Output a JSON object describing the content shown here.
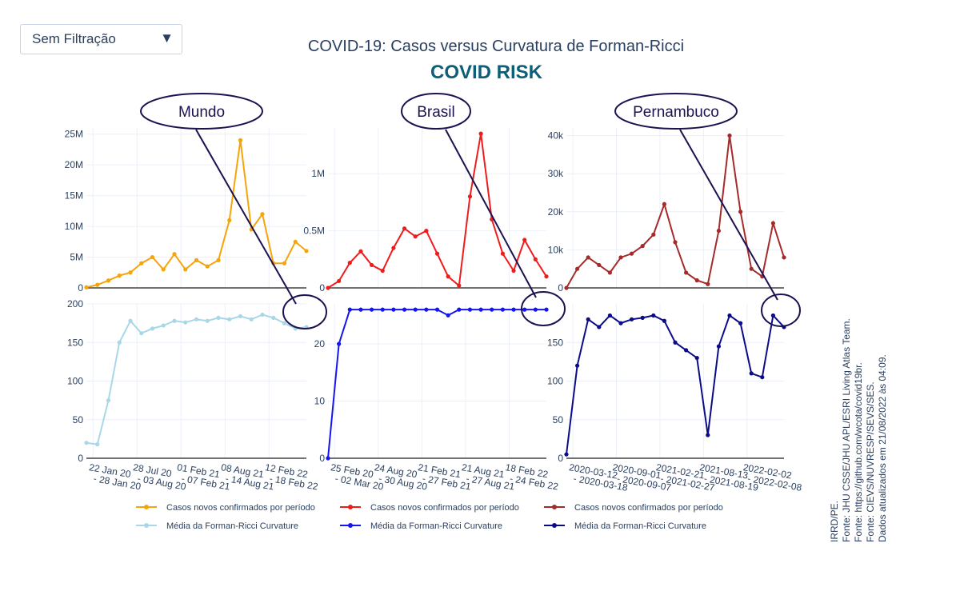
{
  "filter": {
    "selected": "Sem Filtração",
    "arrow_icon": "triangle-down-icon"
  },
  "title": "COVID-19: Casos versus Curvatura de Forman-Ricci",
  "subtitle": "COVID RISK",
  "colors": {
    "mundo_cases": "#f5a40a",
    "mundo_curv": "#a8d8e8",
    "brasil_cases": "#ee1c1c",
    "brasil_curv": "#1515ee",
    "pe_cases": "#a52a2a",
    "pe_curv": "#0b0b8a",
    "annotation": "#1c1250",
    "subtitle": "#0d5e78"
  },
  "annotations": [
    "Mundo",
    "Brasil",
    "Pernambuco"
  ],
  "x_ticks": {
    "mundo_row1": [
      "22 Jan 20",
      "28 Jul 20",
      "01 Feb 21",
      "08 Aug 21",
      "12 Feb 22"
    ],
    "mundo_row2": [
      "- 28 Jan 20",
      "- 03 Aug 20",
      "- 07 Feb 21",
      "- 14 Aug 21",
      "- 18 Feb 22"
    ],
    "brasil_row1": [
      "25 Feb 20",
      "24 Aug 20",
      "21 Feb 21",
      "21 Aug 21",
      "18 Feb 22"
    ],
    "brasil_row2": [
      "- 02 Mar 20",
      "- 30 Aug 20",
      "- 27 Feb 21",
      "- 27 Aug 21",
      "- 24 Feb 22"
    ],
    "pe_row1": [
      "2020-03-12",
      "2020-09-01",
      "2021-02-21",
      "2021-08-13",
      "2022-02-02"
    ],
    "pe_row2": [
      "- 2020-03-18",
      "- 2020-09-07",
      "- 2021-02-27",
      "- 2021-08-19",
      "- 2022-02-08"
    ]
  },
  "legend": [
    {
      "label": "Casos novos confirmados por período",
      "color": "#f5a40a"
    },
    {
      "label": "Casos novos confirmados por período",
      "color": "#ee1c1c"
    },
    {
      "label": "Casos novos confirmados por período",
      "color": "#a52a2a"
    },
    {
      "label": "Média da Forman-Ricci Curvature",
      "color": "#a8d8e8"
    },
    {
      "label": "Média da Forman-Ricci Curvature",
      "color": "#1515ee"
    },
    {
      "label": "Média da Forman-Ricci Curvature",
      "color": "#0b0b8a"
    }
  ],
  "sources": [
    "IRRD/PE.",
    "Fonte: JHU CSSE/JHU APL/ESRI Living Atlas Team.",
    "Fonte: https://github.com/wcota/covid19br.",
    "Fonte: CIEVS/NUVRESP/SEVS/SES.",
    "Dados atualizados em 21/08/2022 às 04:09."
  ],
  "chart_data": [
    {
      "panel": "Mundo - Casos",
      "type": "line",
      "y_ticks": [
        "0",
        "5M",
        "10M",
        "15M",
        "20M",
        "25M"
      ],
      "ylim": [
        0,
        26000000
      ],
      "series": [
        {
          "name": "Casos novos confirmados por período",
          "values": [
            100000,
            500000,
            1200000,
            2000000,
            2500000,
            4000000,
            5000000,
            3000000,
            5500000,
            3000000,
            4500000,
            3500000,
            4500000,
            11000000,
            24000000,
            9500000,
            12000000,
            4000000,
            4000000,
            7500000,
            6000000
          ]
        }
      ]
    },
    {
      "panel": "Mundo - Curvatura",
      "type": "line",
      "y_ticks": [
        "0",
        "50",
        "100",
        "150",
        "200"
      ],
      "ylim": [
        0,
        200
      ],
      "series": [
        {
          "name": "Média da Forman-Ricci Curvature",
          "values": [
            20,
            18,
            75,
            150,
            178,
            162,
            168,
            172,
            178,
            176,
            180,
            178,
            182,
            180,
            184,
            180,
            186,
            182,
            175,
            168,
            170
          ]
        }
      ]
    },
    {
      "panel": "Brasil - Casos",
      "type": "line",
      "y_ticks": [
        "0",
        "0.5M",
        "1M"
      ],
      "ylim": [
        0,
        1400000
      ],
      "series": [
        {
          "name": "Casos novos confirmados por período",
          "values": [
            0,
            60000,
            220000,
            320000,
            200000,
            150000,
            350000,
            520000,
            450000,
            500000,
            300000,
            100000,
            20000,
            800000,
            1350000,
            600000,
            300000,
            150000,
            420000,
            250000,
            100000
          ]
        }
      ]
    },
    {
      "panel": "Brasil - Curvatura",
      "type": "line",
      "y_ticks": [
        "0",
        "10",
        "20"
      ],
      "ylim": [
        0,
        27
      ],
      "series": [
        {
          "name": "Média da Forman-Ricci Curvature",
          "values": [
            0,
            20,
            26,
            26,
            26,
            26,
            26,
            26,
            26,
            26,
            26,
            25,
            26,
            26,
            26,
            26,
            26,
            26,
            26,
            26,
            26
          ]
        }
      ]
    },
    {
      "panel": "Pernambuco - Casos",
      "type": "line",
      "y_ticks": [
        "0",
        "10k",
        "20k",
        "30k",
        "40k"
      ],
      "ylim": [
        0,
        42000
      ],
      "series": [
        {
          "name": "Casos novos confirmados por período",
          "values": [
            0,
            5000,
            8000,
            6000,
            4000,
            8000,
            9000,
            11000,
            14000,
            22000,
            12000,
            4000,
            2000,
            1000,
            15000,
            40000,
            20000,
            5000,
            3000,
            17000,
            8000
          ]
        }
      ]
    },
    {
      "panel": "Pernambuco - Curvatura",
      "type": "line",
      "y_ticks": [
        "0",
        "50",
        "100",
        "150"
      ],
      "ylim": [
        0,
        200
      ],
      "series": [
        {
          "name": "Média da Forman-Ricci Curvature",
          "values": [
            5,
            120,
            180,
            170,
            185,
            175,
            180,
            182,
            185,
            178,
            150,
            140,
            130,
            30,
            145,
            185,
            175,
            110,
            105,
            185,
            170
          ]
        }
      ]
    }
  ]
}
